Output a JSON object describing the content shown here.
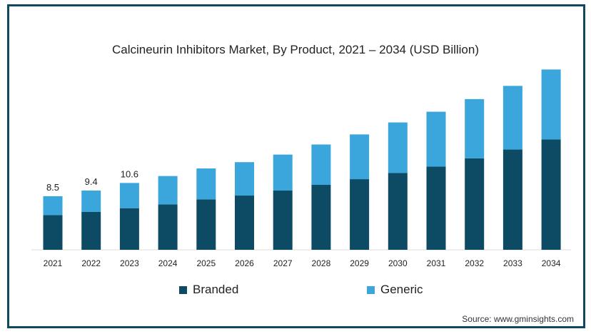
{
  "chart_data": {
    "type": "bar",
    "stacked": true,
    "title": "Calcineurin Inhibitors Market, By Product, 2021 – 2034 (USD Billion)",
    "categories": [
      "2021",
      "2022",
      "2023",
      "2024",
      "2025",
      "2026",
      "2027",
      "2028",
      "2029",
      "2030",
      "2031",
      "2032",
      "2033",
      "2034"
    ],
    "series": [
      {
        "name": "Branded",
        "color": "#0d4a63",
        "values": [
          5.5,
          6.0,
          6.6,
          7.2,
          8.0,
          8.6,
          9.4,
          10.3,
          11.2,
          12.2,
          13.2,
          14.5,
          15.9,
          17.5
        ]
      },
      {
        "name": "Generic",
        "color": "#3aa6dc",
        "values": [
          3.0,
          3.4,
          4.0,
          4.5,
          4.9,
          5.3,
          5.7,
          6.4,
          7.1,
          8.0,
          8.7,
          9.4,
          10.1,
          11.1
        ]
      }
    ],
    "totals_labels": [
      "8.5",
      "9.4",
      "10.6"
    ],
    "ylim": [
      0,
      30
    ],
    "grid": false,
    "legend_position": "bottom"
  },
  "source": "Source: www.gminsights.com"
}
